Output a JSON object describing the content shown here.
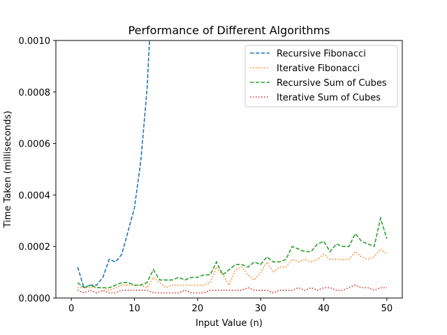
{
  "chart_data": {
    "type": "line",
    "title": "Performance of Different Algorithms",
    "xlabel": "Input Value (n)",
    "ylabel": "Time Taken (milliseconds)",
    "xlim": [
      -2.45,
      52.45
    ],
    "ylim": [
      0,
      0.001
    ],
    "xticks": [
      0,
      10,
      20,
      30,
      40,
      50
    ],
    "xtick_labels": [
      "0",
      "10",
      "20",
      "30",
      "40",
      "50"
    ],
    "yticks": [
      0,
      0.0002,
      0.0004,
      0.0006,
      0.0008,
      0.001
    ],
    "ytick_labels": [
      "0.0000",
      "0.0002",
      "0.0004",
      "0.0006",
      "0.0008",
      "0.0010"
    ],
    "grid": false,
    "legend_position": "top-right",
    "series": [
      {
        "name": "Recursive Fibonacci",
        "color": "#1f77b4",
        "style": "dashed",
        "x": [
          1,
          2,
          3,
          4,
          5,
          6,
          7,
          8,
          9,
          10,
          11,
          12,
          13
        ],
        "y": [
          0.00012,
          4e-05,
          5e-05,
          5e-05,
          8e-05,
          0.00015,
          0.00014,
          0.00017,
          0.00026,
          0.00035,
          0.00053,
          0.00081,
          0.0013
        ]
      },
      {
        "name": "Iterative Fibonacci",
        "color": "#ff7f0e",
        "style": "dotted",
        "x": [
          1,
          2,
          3,
          4,
          5,
          6,
          7,
          8,
          9,
          10,
          11,
          12,
          13,
          14,
          15,
          16,
          17,
          18,
          19,
          20,
          21,
          22,
          23,
          24,
          25,
          26,
          27,
          28,
          29,
          30,
          31,
          32,
          33,
          34,
          35,
          36,
          37,
          38,
          39,
          40,
          41,
          42,
          43,
          44,
          45,
          46,
          47,
          48,
          49,
          50
        ],
        "y": [
          4e-05,
          4e-05,
          4e-05,
          4e-05,
          4e-05,
          3e-05,
          4e-05,
          5e-05,
          5e-05,
          5e-05,
          5e-05,
          4e-05,
          8e-05,
          6e-05,
          4e-05,
          5e-05,
          5e-05,
          5e-05,
          5e-05,
          5e-05,
          5e-05,
          6e-05,
          0.00012,
          9e-05,
          5e-05,
          0.00011,
          0.00012,
          9e-05,
          7e-05,
          0.0001,
          0.00014,
          0.0001,
          0.00012,
          0.00012,
          0.00015,
          0.00014,
          0.00015,
          0.00014,
          0.00015,
          0.00017,
          0.00015,
          0.00015,
          0.00015,
          0.00015,
          0.00018,
          0.00016,
          0.00015,
          0.00016,
          0.00019,
          0.00017
        ]
      },
      {
        "name": "Recursive Sum of Cubes",
        "color": "#2ca02c",
        "style": "dashed",
        "x": [
          1,
          2,
          3,
          4,
          5,
          6,
          7,
          8,
          9,
          10,
          11,
          12,
          13,
          14,
          15,
          16,
          17,
          18,
          19,
          20,
          21,
          22,
          23,
          24,
          25,
          26,
          27,
          28,
          29,
          30,
          31,
          32,
          33,
          34,
          35,
          36,
          37,
          38,
          39,
          40,
          41,
          42,
          43,
          44,
          45,
          46,
          47,
          48,
          49,
          50
        ],
        "y": [
          6e-05,
          4e-05,
          5e-05,
          4e-05,
          4e-05,
          4e-05,
          5e-05,
          6e-05,
          6e-05,
          5e-05,
          5e-05,
          6e-05,
          0.00011,
          7e-05,
          7e-05,
          7e-05,
          8e-05,
          7e-05,
          8e-05,
          8e-05,
          9e-05,
          9e-05,
          0.00014,
          9e-05,
          0.00011,
          0.00013,
          0.00013,
          0.00012,
          0.00014,
          0.00013,
          0.00016,
          0.00014,
          0.00014,
          0.00015,
          0.0002,
          0.00019,
          0.00018,
          0.00018,
          0.00021,
          0.00022,
          0.00018,
          0.00021,
          0.0002,
          0.0002,
          0.00025,
          0.00022,
          0.00021,
          0.0002,
          0.00031,
          0.00023
        ]
      },
      {
        "name": "Iterative Sum of Cubes",
        "color": "#d62728",
        "style": "dotted",
        "x": [
          1,
          2,
          3,
          4,
          5,
          6,
          7,
          8,
          9,
          10,
          11,
          12,
          13,
          14,
          15,
          16,
          17,
          18,
          19,
          20,
          21,
          22,
          23,
          24,
          25,
          26,
          27,
          28,
          29,
          30,
          31,
          32,
          33,
          34,
          35,
          36,
          37,
          38,
          39,
          40,
          41,
          42,
          43,
          44,
          45,
          46,
          47,
          48,
          49,
          50
        ],
        "y": [
          3e-05,
          2e-05,
          3e-05,
          2e-05,
          3e-05,
          2e-05,
          2e-05,
          3e-05,
          3e-05,
          3e-05,
          3e-05,
          3e-05,
          2e-05,
          2e-05,
          2e-05,
          2e-05,
          2e-05,
          3e-05,
          2e-05,
          2e-05,
          2e-05,
          3e-05,
          3e-05,
          3e-05,
          3e-05,
          3e-05,
          3e-05,
          4e-05,
          3e-05,
          3e-05,
          3e-05,
          2e-05,
          3e-05,
          3e-05,
          3e-05,
          4e-05,
          3e-05,
          4e-05,
          3e-05,
          4e-05,
          4e-05,
          3e-05,
          3e-05,
          4e-05,
          5e-05,
          4e-05,
          4e-05,
          3e-05,
          4e-05,
          4e-05
        ]
      }
    ]
  }
}
